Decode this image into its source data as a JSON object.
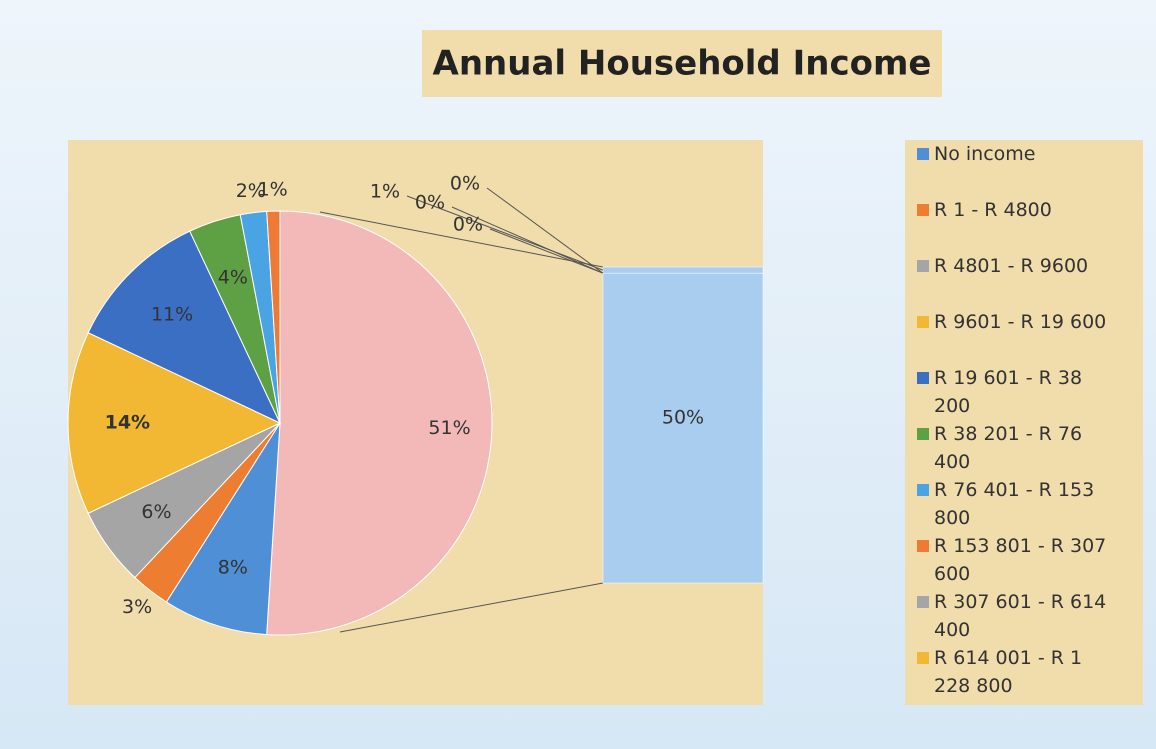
{
  "chart_data": {
    "type": "pie-of-bar",
    "title": "Annual Household Income",
    "categories": [
      "No income",
      "R 1 - R 4800",
      "R 4801 - R 9600",
      "R 9601 - R 19 600",
      "R 19 601 - R 38 200",
      "R 38 201 - R 76 400",
      "R 76 401 - R 153 800",
      "R 153 801 - R 307 600",
      "R 307 601 - R 614 400",
      "R 614 001 - R 1 228 800"
    ],
    "values": [
      8,
      3,
      6,
      14,
      11,
      4,
      2,
      1,
      1,
      0
    ],
    "value_labels": [
      "8%",
      "3%",
      "6%",
      "14%",
      "11%",
      "4%",
      "2%",
      "1%",
      "1%",
      "0%"
    ],
    "colors": [
      "#4f8fd6",
      "#ed7d31",
      "#a5a5a5",
      "#f2b833",
      "#3a6fc4",
      "#5ea144",
      "#4aa3e2",
      "#ef7a35",
      "#a5a5a5",
      "#f2b833"
    ],
    "other_values": [
      0,
      0,
      50
    ],
    "other_value_labels": [
      "0%",
      "0%",
      "50%"
    ],
    "other_total": 51,
    "other_total_label": "51%",
    "other_color": "#f3b9b9",
    "bar_color": "#a9cdee"
  }
}
